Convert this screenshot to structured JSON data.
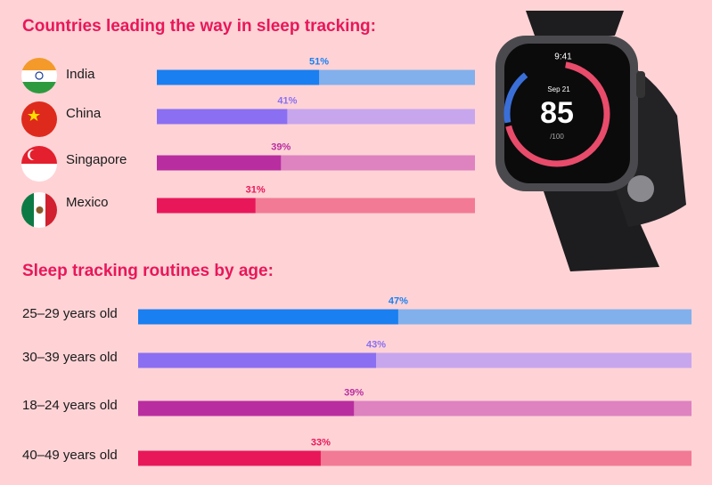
{
  "chart_data": [
    {
      "type": "bar",
      "orientation": "horizontal",
      "title": "Countries leading the way in sleep tracking:",
      "categories": [
        "India",
        "China",
        "Singapore",
        "Mexico"
      ],
      "values": [
        51,
        41,
        39,
        31
      ],
      "value_labels": [
        "51%",
        "41%",
        "39%",
        "31%"
      ],
      "colors": [
        "#1a7ff0",
        "#8a6ff2",
        "#b82da0",
        "#e8175a"
      ],
      "track_colors": [
        "#82b0ec",
        "#c8a6ee",
        "#de82c0",
        "#f27a94"
      ],
      "xlim": [
        0,
        100
      ]
    },
    {
      "type": "bar",
      "orientation": "horizontal",
      "title": "Sleep tracking routines by age:",
      "categories": [
        "25–29 years old",
        "30–39 years old",
        "18–24 years old",
        "40–49 years old"
      ],
      "values": [
        47,
        43,
        39,
        33
      ],
      "value_labels": [
        "47%",
        "43%",
        "39%",
        "33%"
      ],
      "colors": [
        "#1a7ff0",
        "#8a6ff2",
        "#b82da0",
        "#e8175a"
      ],
      "track_colors": [
        "#82b0ec",
        "#c8a6ee",
        "#de82c0",
        "#f27a94"
      ],
      "xlim": [
        0,
        100
      ]
    }
  ]
}
